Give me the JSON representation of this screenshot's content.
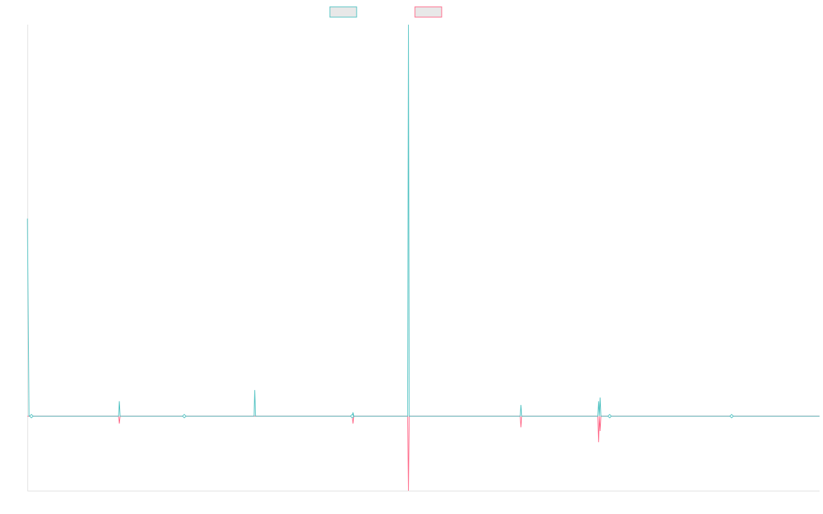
{
  "colors": {
    "series_1": "#4bc0c0",
    "series_2": "#ff6384",
    "axis": "#e0e0e0"
  },
  "chart_data": {
    "type": "line",
    "title": "",
    "xlabel": "",
    "ylabel": "",
    "grid": false,
    "legend": "top-center",
    "xlim": [
      0,
      1000
    ],
    "ylim": [
      -20,
      105
    ],
    "x": [
      0,
      2,
      5,
      115,
      116,
      117,
      198,
      286,
      287,
      288,
      410,
      411,
      412,
      480,
      481,
      482,
      622,
      623,
      624,
      720,
      721,
      722,
      723,
      724,
      735,
      889,
      1000
    ],
    "series": [
      {
        "values": [
          53,
          0,
          0,
          0,
          4,
          0,
          0,
          0,
          7,
          0,
          0,
          1,
          0,
          0,
          105,
          0,
          0,
          3,
          0,
          0,
          4,
          0,
          5,
          0,
          0,
          0,
          0
        ]
      },
      {
        "values": [
          0,
          0,
          0,
          0,
          -2,
          0,
          0,
          0,
          0,
          0,
          0,
          -2,
          0,
          0,
          -20,
          0,
          0,
          -3,
          0,
          0,
          -7,
          0,
          -4,
          0,
          0,
          0,
          0
        ]
      }
    ],
    "marker_x": [
      5,
      198,
      410,
      735,
      889
    ]
  }
}
